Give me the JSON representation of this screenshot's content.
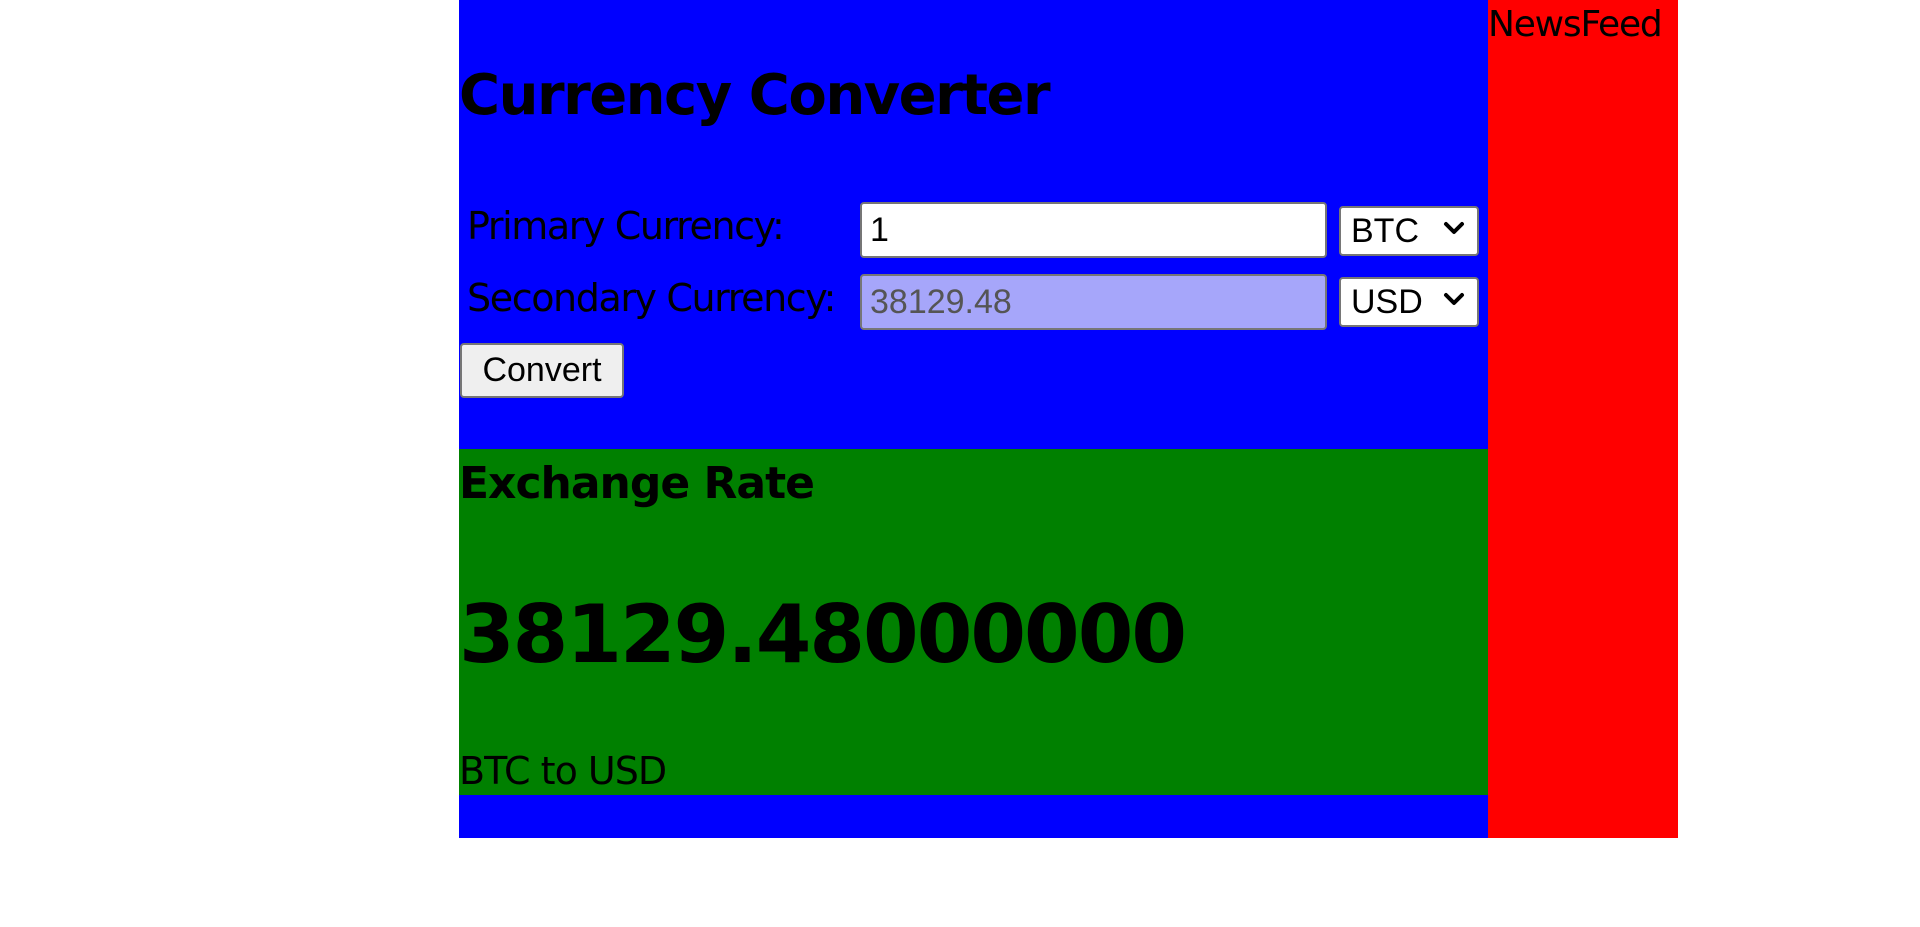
{
  "converter": {
    "title": "Currency Converter",
    "primary": {
      "label": "Primary Currency:",
      "amount": "1",
      "currency": "BTC"
    },
    "secondary": {
      "label": "Secondary Currency:",
      "amount": "38129.48",
      "currency": "USD"
    },
    "convert_label": "Convert"
  },
  "exchange_rate": {
    "heading": "Exchange Rate",
    "value": "38129.48000000",
    "pair": "BTC to USD"
  },
  "news": {
    "title": "NewsFeed"
  },
  "colors": {
    "converter_background": "#0000ff",
    "rate_background": "#008000",
    "news_background": "#ff0000",
    "secondary_input_background": "#a6a6fa"
  }
}
